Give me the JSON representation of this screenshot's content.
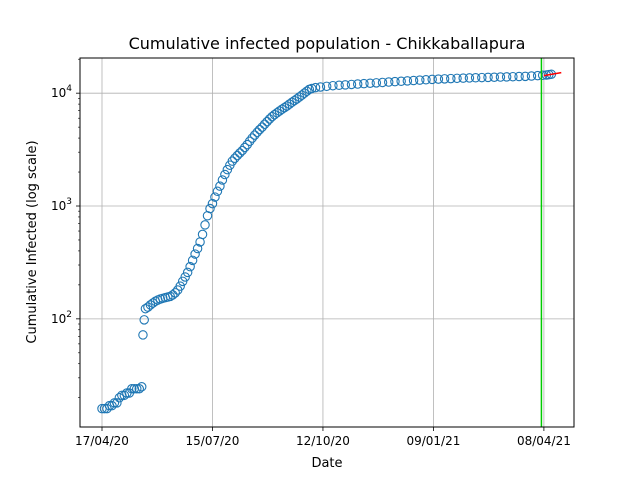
{
  "chart_data": {
    "type": "scatter",
    "title": "Cumulative infected population - Chikkaballapura",
    "xlabel": "Date",
    "ylabel": "Cumulative Infected (log scale)",
    "y_scale": "log",
    "grid": true,
    "x_range": [
      "2020-04-17",
      "2021-04-25"
    ],
    "y_range": [
      11,
      20500
    ],
    "x_ticks": [
      {
        "date": "2020-04-17",
        "label": "17/04/20"
      },
      {
        "date": "2020-07-15",
        "label": "15/07/20"
      },
      {
        "date": "2020-10-12",
        "label": "12/10/20"
      },
      {
        "date": "2021-01-09",
        "label": "09/01/21"
      },
      {
        "date": "2021-04-08",
        "label": "08/04/21"
      }
    ],
    "y_ticks": [
      {
        "value": 100,
        "base": "10",
        "exp": "2"
      },
      {
        "value": 1000,
        "base": "10",
        "exp": "3"
      },
      {
        "value": 10000,
        "base": "10",
        "exp": "4"
      }
    ],
    "series": [
      {
        "marker": "open-circle",
        "color": "#1f77b4",
        "points": [
          [
            "2020-04-17",
            16
          ],
          [
            "2020-04-19",
            16
          ],
          [
            "2020-04-21",
            16
          ],
          [
            "2020-04-23",
            17
          ],
          [
            "2020-04-25",
            17
          ],
          [
            "2020-04-27",
            18
          ],
          [
            "2020-04-29",
            18
          ],
          [
            "2020-05-01",
            20
          ],
          [
            "2020-05-03",
            21
          ],
          [
            "2020-05-05",
            21
          ],
          [
            "2020-05-07",
            22
          ],
          [
            "2020-05-09",
            22
          ],
          [
            "2020-05-11",
            24
          ],
          [
            "2020-05-13",
            24
          ],
          [
            "2020-05-15",
            24
          ],
          [
            "2020-05-17",
            24
          ],
          [
            "2020-05-19",
            25
          ],
          [
            "2020-05-20",
            72
          ],
          [
            "2020-05-21",
            98
          ],
          [
            "2020-05-22",
            123
          ],
          [
            "2020-05-24",
            127
          ],
          [
            "2020-05-26",
            133
          ],
          [
            "2020-05-28",
            138
          ],
          [
            "2020-05-30",
            143
          ],
          [
            "2020-06-01",
            147
          ],
          [
            "2020-06-03",
            150
          ],
          [
            "2020-06-05",
            152
          ],
          [
            "2020-06-07",
            154
          ],
          [
            "2020-06-09",
            156
          ],
          [
            "2020-06-11",
            158
          ],
          [
            "2020-06-13",
            163
          ],
          [
            "2020-06-15",
            170
          ],
          [
            "2020-06-17",
            180
          ],
          [
            "2020-06-19",
            195
          ],
          [
            "2020-06-21",
            215
          ],
          [
            "2020-06-23",
            235
          ],
          [
            "2020-06-25",
            258
          ],
          [
            "2020-06-27",
            290
          ],
          [
            "2020-06-29",
            330
          ],
          [
            "2020-07-01",
            375
          ],
          [
            "2020-07-03",
            420
          ],
          [
            "2020-07-05",
            480
          ],
          [
            "2020-07-07",
            560
          ],
          [
            "2020-07-09",
            680
          ],
          [
            "2020-07-11",
            820
          ],
          [
            "2020-07-13",
            950
          ],
          [
            "2020-07-15",
            1050
          ],
          [
            "2020-07-17",
            1200
          ],
          [
            "2020-07-19",
            1350
          ],
          [
            "2020-07-21",
            1500
          ],
          [
            "2020-07-23",
            1700
          ],
          [
            "2020-07-25",
            1900
          ],
          [
            "2020-07-27",
            2100
          ],
          [
            "2020-07-29",
            2300
          ],
          [
            "2020-07-31",
            2500
          ],
          [
            "2020-08-02",
            2650
          ],
          [
            "2020-08-04",
            2800
          ],
          [
            "2020-08-06",
            2950
          ],
          [
            "2020-08-08",
            3100
          ],
          [
            "2020-08-10",
            3300
          ],
          [
            "2020-08-12",
            3500
          ],
          [
            "2020-08-14",
            3750
          ],
          [
            "2020-08-16",
            4000
          ],
          [
            "2020-08-18",
            4250
          ],
          [
            "2020-08-20",
            4500
          ],
          [
            "2020-08-22",
            4750
          ],
          [
            "2020-08-24",
            5000
          ],
          [
            "2020-08-26",
            5300
          ],
          [
            "2020-08-28",
            5600
          ],
          [
            "2020-08-30",
            5900
          ],
          [
            "2020-09-01",
            6200
          ],
          [
            "2020-09-03",
            6450
          ],
          [
            "2020-09-05",
            6700
          ],
          [
            "2020-09-07",
            6950
          ],
          [
            "2020-09-09",
            7200
          ],
          [
            "2020-09-11",
            7450
          ],
          [
            "2020-09-13",
            7700
          ],
          [
            "2020-09-15",
            8000
          ],
          [
            "2020-09-17",
            8300
          ],
          [
            "2020-09-19",
            8600
          ],
          [
            "2020-09-21",
            8900
          ],
          [
            "2020-09-23",
            9250
          ],
          [
            "2020-09-25",
            9600
          ],
          [
            "2020-09-27",
            10000
          ],
          [
            "2020-09-29",
            10400
          ],
          [
            "2020-10-01",
            10800
          ],
          [
            "2020-10-03",
            11000
          ],
          [
            "2020-10-06",
            11200
          ],
          [
            "2020-10-10",
            11350
          ],
          [
            "2020-10-15",
            11500
          ],
          [
            "2020-10-20",
            11650
          ],
          [
            "2020-10-25",
            11750
          ],
          [
            "2020-10-30",
            11850
          ],
          [
            "2020-11-04",
            11950
          ],
          [
            "2020-11-09",
            12050
          ],
          [
            "2020-11-14",
            12150
          ],
          [
            "2020-11-19",
            12250
          ],
          [
            "2020-11-24",
            12350
          ],
          [
            "2020-11-29",
            12450
          ],
          [
            "2020-12-04",
            12550
          ],
          [
            "2020-12-09",
            12650
          ],
          [
            "2020-12-14",
            12750
          ],
          [
            "2020-12-19",
            12850
          ],
          [
            "2020-12-24",
            12950
          ],
          [
            "2020-12-29",
            13050
          ],
          [
            "2021-01-03",
            13150
          ],
          [
            "2021-01-08",
            13250
          ],
          [
            "2021-01-13",
            13330
          ],
          [
            "2021-01-18",
            13400
          ],
          [
            "2021-01-23",
            13470
          ],
          [
            "2021-01-28",
            13540
          ],
          [
            "2021-02-02",
            13600
          ],
          [
            "2021-02-07",
            13650
          ],
          [
            "2021-02-12",
            13700
          ],
          [
            "2021-02-17",
            13750
          ],
          [
            "2021-02-22",
            13800
          ],
          [
            "2021-02-27",
            13850
          ],
          [
            "2021-03-04",
            13900
          ],
          [
            "2021-03-09",
            13950
          ],
          [
            "2021-03-14",
            14000
          ],
          [
            "2021-03-19",
            14050
          ],
          [
            "2021-03-24",
            14100
          ],
          [
            "2021-03-29",
            14200
          ],
          [
            "2021-04-03",
            14300
          ],
          [
            "2021-04-07",
            14400
          ],
          [
            "2021-04-10",
            14500
          ],
          [
            "2021-04-12",
            14600
          ],
          [
            "2021-04-14",
            14700
          ]
        ]
      },
      {
        "marker": "line",
        "color": "#ff0000",
        "points": [
          [
            "2021-04-08",
            14300
          ],
          [
            "2021-04-22",
            15200
          ]
        ]
      }
    ],
    "vertical_line": {
      "date": "2021-04-06",
      "color": "#00cc00"
    }
  }
}
